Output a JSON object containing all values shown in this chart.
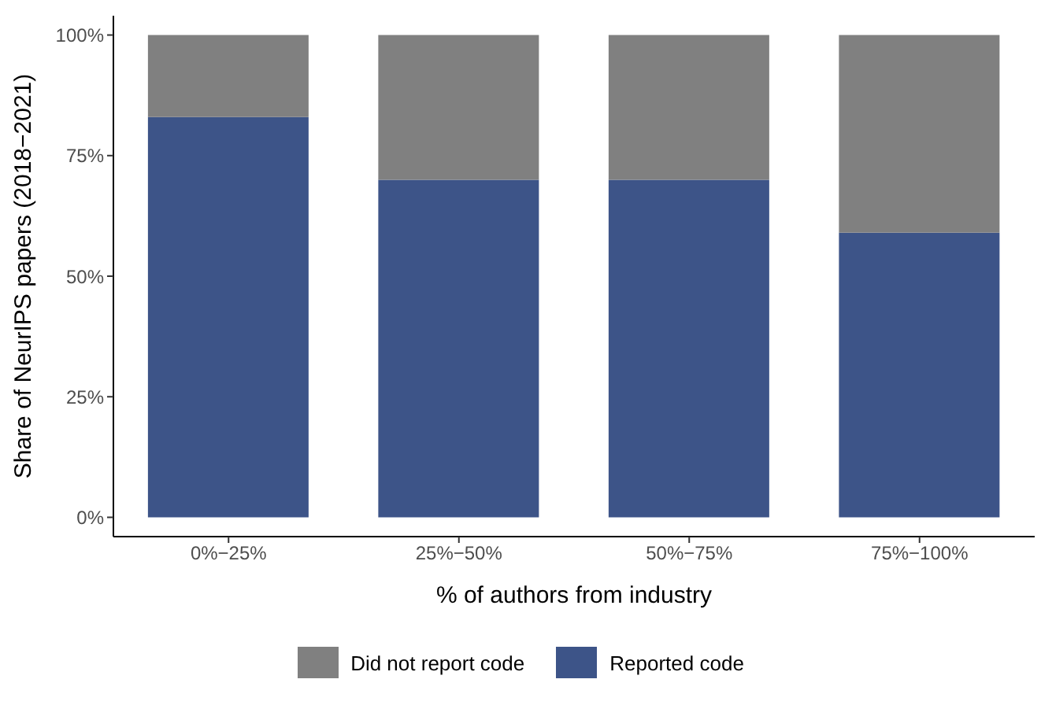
{
  "chart_data": {
    "type": "bar",
    "stacked": true,
    "xlabel": "% of authors from industry",
    "ylabel": "Share of NeurIPS papers (2018−2021)",
    "categories": [
      "0%−25%",
      "25%−50%",
      "50%−75%",
      "75%−100%"
    ],
    "series": [
      {
        "name": "Reported code",
        "color": "#3d5488",
        "values": [
          83,
          70,
          70,
          59
        ]
      },
      {
        "name": "Did not report code",
        "color": "#808080",
        "values": [
          17,
          30,
          30,
          41
        ]
      }
    ],
    "ylim": [
      -4,
      104
    ],
    "yticks": [
      {
        "value": 0,
        "label": "0%"
      },
      {
        "value": 25,
        "label": "25%"
      },
      {
        "value": 50,
        "label": "50%"
      },
      {
        "value": 75,
        "label": "75%"
      },
      {
        "value": 100,
        "label": "100%"
      }
    ],
    "grid": false,
    "legend": "bottom"
  }
}
